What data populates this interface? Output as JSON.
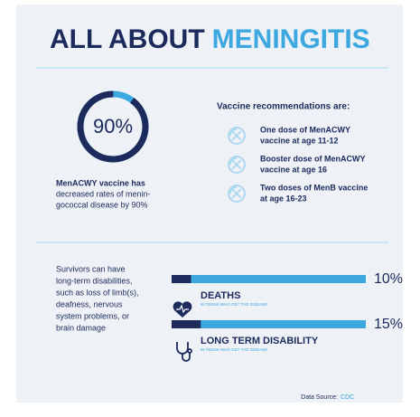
{
  "title": {
    "part1": "ALL ABOUT",
    "part2": "MENINGITIS"
  },
  "stat": {
    "value": 90,
    "label": "90%",
    "caption": [
      "MenACWY vaccine has",
      "decreased rates of menin-",
      "gococcal disease by 90%"
    ]
  },
  "vaccines": {
    "heading": "Vaccine recommendations are:",
    "items": [
      [
        "One dose of MenACWY",
        "vaccine at age 11-12"
      ],
      [
        "Booster dose of MenACWY",
        "vaccine at age 16"
      ],
      [
        "Two doses of MenB vaccine",
        "at age 16-23"
      ]
    ]
  },
  "survivors": [
    "Survivors can have",
    "long-term disabilities,",
    "such as loss of limb(s),",
    "deafness, nervous",
    "system problems, or",
    "brain damage"
  ],
  "outcomes": [
    {
      "name": "DEATHS",
      "note": "IN TEENS WHO GET THE DISEASE",
      "value": 10,
      "label": "10%"
    },
    {
      "name": "LONG TERM DISABILITY",
      "note": "IN TEENS WHO GET THE DISEASE",
      "value": 15,
      "label": "15%"
    }
  ],
  "source": {
    "prefix": "Data Source:",
    "name": "CDC"
  }
}
